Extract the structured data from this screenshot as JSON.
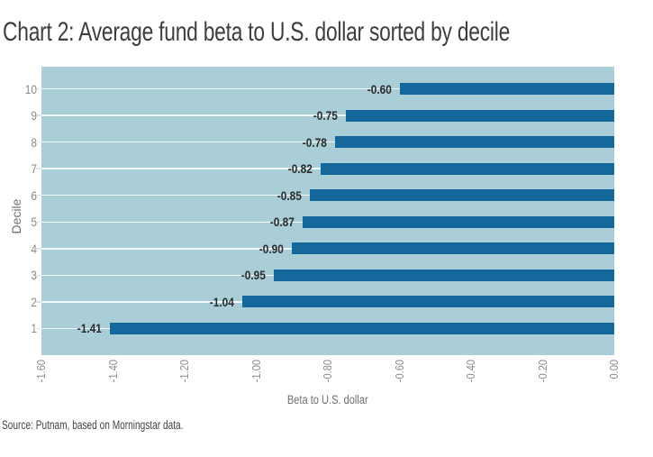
{
  "chart_data": {
    "type": "bar",
    "orientation": "horizontal",
    "title": "Chart 2: Average fund beta to U.S. dollar sorted by decile",
    "categories": [
      "10",
      "9",
      "8",
      "7",
      "6",
      "5",
      "4",
      "3",
      "2",
      "1"
    ],
    "values": [
      -0.6,
      -0.75,
      -0.78,
      -0.82,
      -0.85,
      -0.87,
      -0.9,
      -0.95,
      -1.04,
      -1.41
    ],
    "value_labels": [
      "-0.60",
      "-0.75",
      "-0.78",
      "-0.82",
      "-0.85",
      "-0.87",
      "-0.90",
      "-0.95",
      "-1.04",
      "-1.41"
    ],
    "xlabel": "Beta to U.S. dollar",
    "ylabel": "Decile",
    "xlim": [
      -1.6,
      0
    ],
    "x_ticks": [
      "-1.60",
      "-1.40",
      "-1.20",
      "-1.00",
      "-0.80",
      "-0.60",
      "-0.40",
      "-0.20",
      "0.00"
    ],
    "grid": "horizontal white lines at each decile, behind bars",
    "legend": "none"
  },
  "source_note": "Source: Putnam, based on Morningstar data.",
  "colors": {
    "bar": "#15689b",
    "plot_background": "#a9ced8",
    "gridline": "#ffffff",
    "value_label": "#2b2b2b",
    "tick_label": "#8a8a8a",
    "axis_title": "#6f6f6f",
    "title_text": "#3d3d3d",
    "source_text": "#454545"
  }
}
